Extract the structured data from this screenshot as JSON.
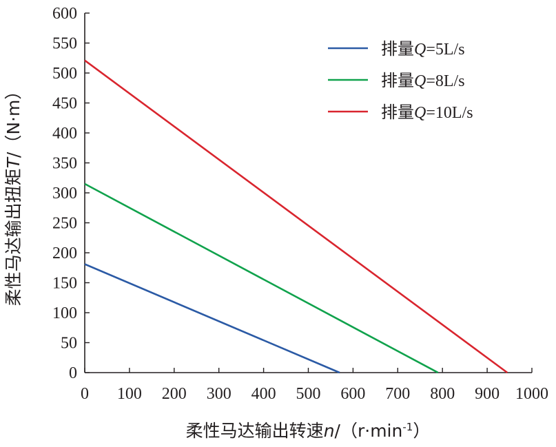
{
  "chart_data": {
    "type": "line",
    "xlabel": {
      "prefix": "柔性马达输出转速",
      "var": "n",
      "unit_open": "/（r·min",
      "unit_sup": "-1",
      "unit_close": "）"
    },
    "ylabel": {
      "prefix": "柔性马达输出扭矩",
      "var": "T",
      "unit": "/（N·m）"
    },
    "xlim": [
      0,
      1000
    ],
    "ylim": [
      0,
      600
    ],
    "xticks": [
      "0",
      "100",
      "200",
      "300",
      "400",
      "500",
      "600",
      "700",
      "800",
      "900",
      "1000"
    ],
    "yticks": [
      "0",
      "50",
      "100",
      "150",
      "200",
      "250",
      "300",
      "350",
      "400",
      "450",
      "500",
      "550",
      "600"
    ],
    "grid": false,
    "legend_position": "top-right",
    "series": [
      {
        "name": {
          "prefix": "排量",
          "var": "Q",
          "suffix": "=5L/s"
        },
        "color": "#2b5aa5",
        "x": [
          0,
          570
        ],
        "y": [
          181,
          0
        ]
      },
      {
        "name": {
          "prefix": "排量",
          "var": "Q",
          "suffix": "=8L/s"
        },
        "color": "#10a24c",
        "x": [
          0,
          790
        ],
        "y": [
          315,
          0
        ]
      },
      {
        "name": {
          "prefix": "排量",
          "var": "Q",
          "suffix": "=10L/s"
        },
        "color": "#d9252e",
        "x": [
          0,
          945
        ],
        "y": [
          521,
          0
        ]
      }
    ]
  }
}
